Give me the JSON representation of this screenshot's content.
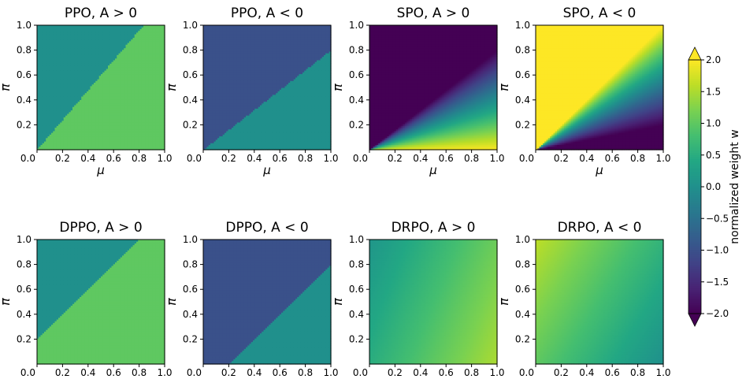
{
  "chart_data": {
    "type": "heatmap",
    "xlabel": "μ",
    "ylabel": "π",
    "xlim": [
      0,
      1
    ],
    "ylim": [
      0,
      1
    ],
    "xticks": [
      "0.0",
      "0.2",
      "0.4",
      "0.6",
      "0.8",
      "1.0"
    ],
    "yticks": [
      "0.2",
      "0.4",
      "0.6",
      "0.8",
      "1.0"
    ],
    "grid": false,
    "colormap": "viridis",
    "colorbar": {
      "label": "normalized weight w",
      "range": [
        -2.0,
        2.0
      ],
      "ticks": [
        "2.0",
        "1.5",
        "1.0",
        "0.5",
        "0.0",
        "−0.5",
        "−1.0",
        "−1.5",
        "−2.0"
      ],
      "extend": "both",
      "placement": "right"
    },
    "panels": [
      {
        "title": "PPO, A > 0",
        "method": "PPO",
        "A_sign": 1,
        "epsilon": 0.2,
        "row": 1,
        "col": 1
      },
      {
        "title": "PPO, A < 0",
        "method": "PPO",
        "A_sign": -1,
        "epsilon": 0.2,
        "row": 1,
        "col": 2
      },
      {
        "title": "SPO, A > 0",
        "method": "SPO",
        "A_sign": 1,
        "epsilon": 0.2,
        "row": 1,
        "col": 3
      },
      {
        "title": "SPO, A < 0",
        "method": "SPO",
        "A_sign": -1,
        "epsilon": 0.2,
        "row": 1,
        "col": 4
      },
      {
        "title": "DPPO, A > 0",
        "method": "DPPO",
        "A_sign": 1,
        "delta": 0.2,
        "row": 2,
        "col": 1
      },
      {
        "title": "DPPO, A < 0",
        "method": "DPPO",
        "A_sign": -1,
        "delta": 0.2,
        "row": 2,
        "col": 2
      },
      {
        "title": "DRPO, A > 0",
        "method": "DRPO",
        "A_sign": 1,
        "row": 2,
        "col": 3
      },
      {
        "title": "DRPO, A < 0",
        "method": "DRPO",
        "A_sign": -1,
        "row": 2,
        "col": 4
      }
    ]
  }
}
